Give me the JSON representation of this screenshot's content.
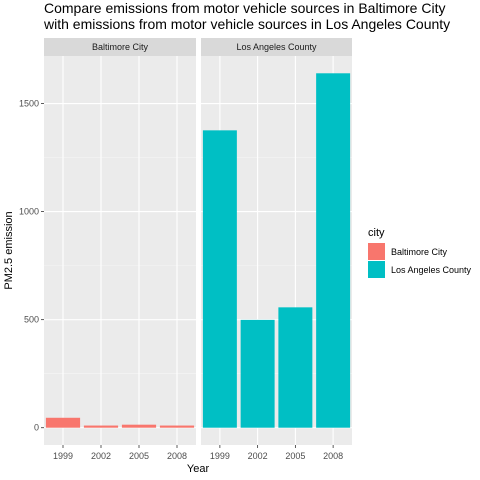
{
  "chart_data": {
    "type": "bar",
    "title": [
      "Compare emissions from motor vehicle sources in Baltimore City",
      "with emissions from motor vehicle sources in Los Angeles County"
    ],
    "xlabel": "Year",
    "ylabel": "PM2.5 emission",
    "categories": [
      "1999",
      "2002",
      "2005",
      "2008"
    ],
    "ylim": [
      -80,
      1720
    ],
    "yticks": [
      0,
      500,
      1000,
      1500
    ],
    "grid": true,
    "legend": {
      "title": "city",
      "placement": "right",
      "entries": [
        "Baltimore City",
        "Los Angeles County"
      ]
    },
    "series": [
      {
        "name": "Baltimore City",
        "color": "#F8766D",
        "values": [
          46,
          10,
          14,
          10
        ]
      },
      {
        "name": "Los Angeles County",
        "color": "#00BFC4",
        "values": [
          1376,
          499,
          557,
          1640
        ]
      }
    ],
    "facets": [
      "Baltimore City",
      "Los Angeles County"
    ]
  }
}
